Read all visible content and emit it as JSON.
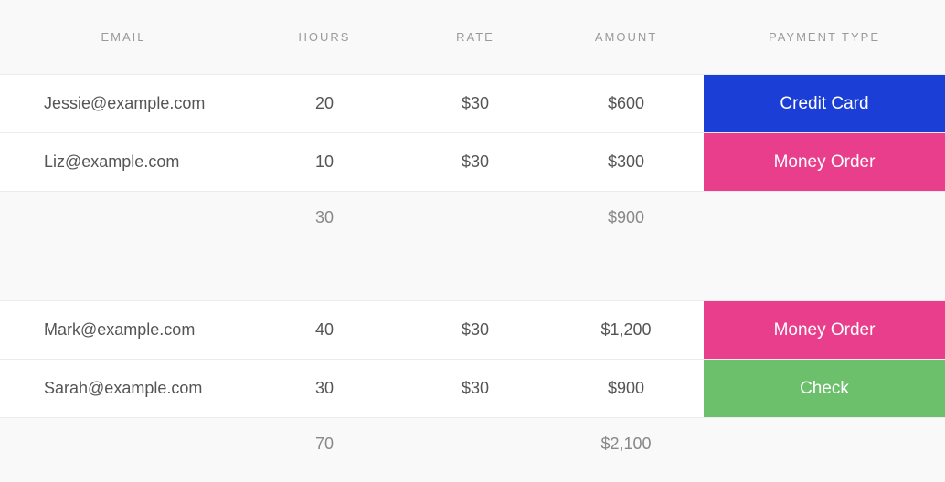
{
  "colors": {
    "header_bg": "#f9f9f9",
    "row_bg": "#ffffff",
    "border": "#ececec",
    "header_text": "#9a9a9a",
    "body_text": "#555555",
    "summary_text": "#888888",
    "badge_credit_card": "#1b3fd6",
    "badge_money_order": "#e83e8c",
    "badge_check": "#6cc06c",
    "badge_text": "#ffffff"
  },
  "columns": {
    "email": "EMAIL",
    "hours": "HOURS",
    "rate": "RATE",
    "amount": "AMOUNT",
    "payment_type": "PAYMENT TYPE"
  },
  "groups": [
    {
      "rows": [
        {
          "email": "Jessie@example.com",
          "hours": "20",
          "rate": "$30",
          "amount": "$600",
          "payment_type": "Credit Card",
          "payment_color_key": "badge_credit_card"
        },
        {
          "email": "Liz@example.com",
          "hours": "10",
          "rate": "$30",
          "amount": "$300",
          "payment_type": "Money Order",
          "payment_color_key": "badge_money_order"
        }
      ],
      "summary": {
        "hours": "30",
        "amount": "$900"
      }
    },
    {
      "rows": [
        {
          "email": "Mark@example.com",
          "hours": "40",
          "rate": "$30",
          "amount": "$1,200",
          "payment_type": "Money Order",
          "payment_color_key": "badge_money_order"
        },
        {
          "email": "Sarah@example.com",
          "hours": "30",
          "rate": "$30",
          "amount": "$900",
          "payment_type": "Check",
          "payment_color_key": "badge_check"
        }
      ],
      "summary": {
        "hours": "70",
        "amount": "$2,100"
      }
    }
  ]
}
